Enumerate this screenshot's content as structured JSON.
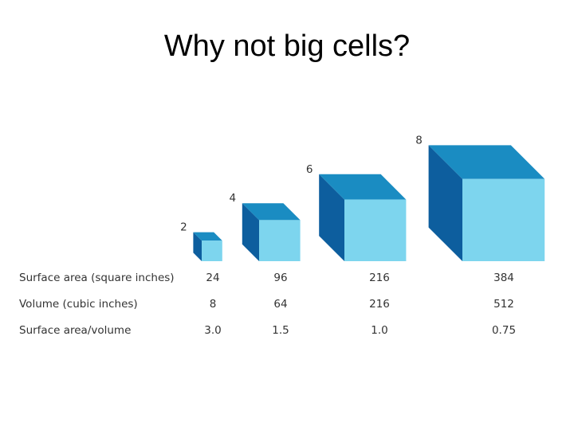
{
  "title": "Why not big cells?",
  "cubes": [
    {
      "side": 2
    },
    {
      "side": 4
    },
    {
      "side": 6
    },
    {
      "side": 8
    }
  ],
  "table": {
    "rows": [
      {
        "label": "Surface area (square inches)",
        "values": [
          "24",
          "96",
          "216",
          "384"
        ]
      },
      {
        "label": "Volume (cubic inches)",
        "values": [
          "8",
          "64",
          "216",
          "512"
        ]
      },
      {
        "label": "Surface area/volume",
        "values": [
          "3.0",
          "1.5",
          "1.0",
          "0.75"
        ]
      }
    ]
  }
}
